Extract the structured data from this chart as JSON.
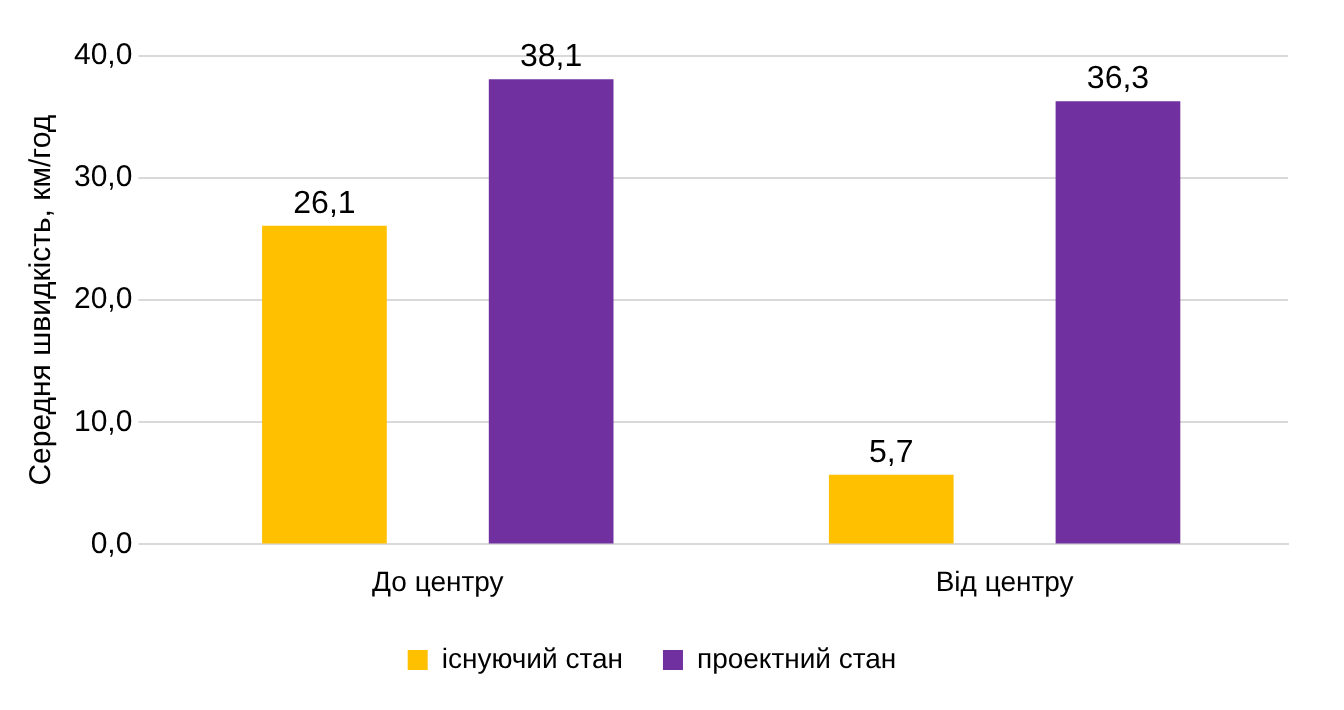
{
  "chart_data": {
    "type": "bar",
    "ylabel": "Середня швидкість, км/год",
    "categories": [
      "До центру",
      "Від центру"
    ],
    "series": [
      {
        "name": "існуючий стан",
        "color": "#ffc000",
        "values": [
          26.1,
          5.7
        ],
        "value_labels": [
          "26,1",
          "5,7"
        ]
      },
      {
        "name": "проектний стан",
        "color": "#7030a0",
        "values": [
          38.1,
          36.3
        ],
        "value_labels": [
          "38,1",
          "36,3"
        ]
      }
    ],
    "ylim": [
      0,
      40
    ],
    "yticks": [
      {
        "value": 0,
        "label": "0,0"
      },
      {
        "value": 10,
        "label": "10,0"
      },
      {
        "value": 20,
        "label": "20,0"
      },
      {
        "value": 30,
        "label": "30,0"
      },
      {
        "value": 40,
        "label": "40,0"
      }
    ],
    "grid": "y",
    "legend": "bottom"
  }
}
